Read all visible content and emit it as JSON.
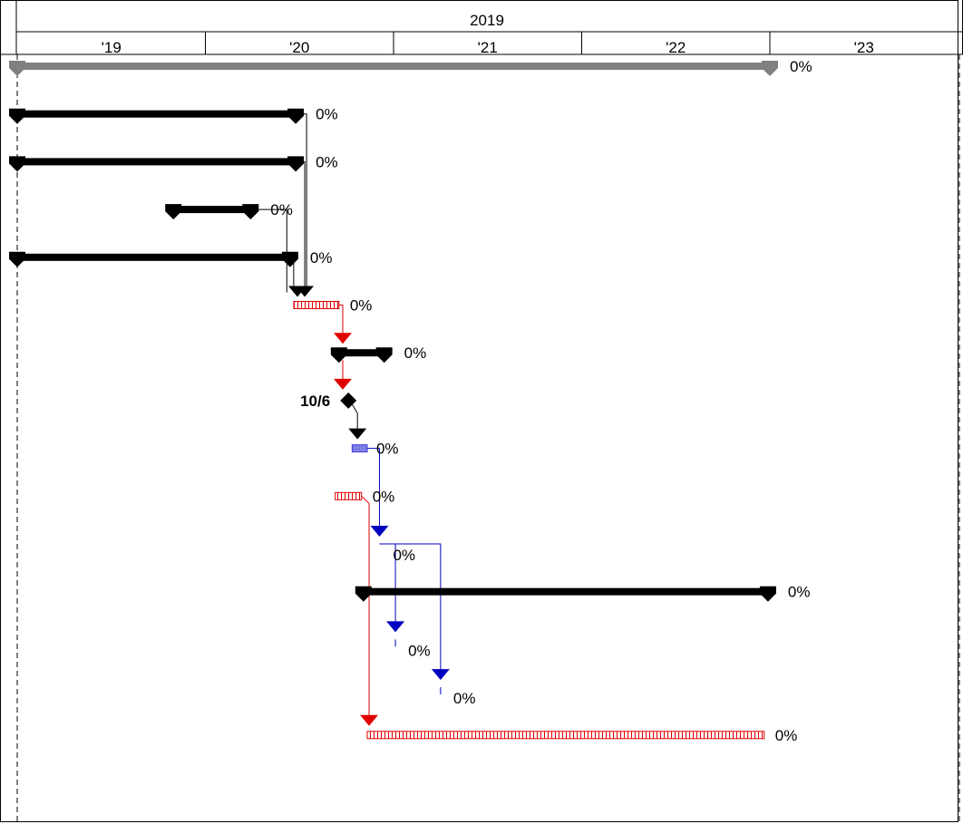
{
  "chart_data": {
    "type": "gantt",
    "timescale": {
      "top_label": "2019",
      "ticks": [
        "'19",
        "'20",
        "'21",
        "'22",
        "'23"
      ]
    },
    "colors": {
      "summary": "#000000",
      "project_summary": "#808080",
      "critical": "#e00000",
      "noncritical": "#4040e0",
      "link_black": "#000000",
      "link_red": "#e00000",
      "link_blue": "#0000c0"
    },
    "tasks": [
      {
        "id": 1,
        "kind": "project-summary",
        "start": 0.0,
        "finish": 4.0,
        "progress": "0%"
      },
      {
        "id": 2,
        "kind": "summary",
        "start": 0.0,
        "finish": 1.48,
        "progress": "0%"
      },
      {
        "id": 3,
        "kind": "summary",
        "start": 0.0,
        "finish": 1.48,
        "progress": "0%"
      },
      {
        "id": 4,
        "kind": "summary",
        "start": 0.83,
        "finish": 1.24,
        "progress": "0%"
      },
      {
        "id": 5,
        "kind": "summary",
        "start": 0.0,
        "finish": 1.45,
        "progress": "0%"
      },
      {
        "id": 6,
        "kind": "critical-task",
        "start": 1.47,
        "finish": 1.71,
        "progress": "0%"
      },
      {
        "id": 7,
        "kind": "summary",
        "start": 1.71,
        "finish": 1.95,
        "progress": "0%"
      },
      {
        "id": 8,
        "kind": "milestone",
        "start": 1.76,
        "finish": 1.76,
        "label": "10/6"
      },
      {
        "id": 9,
        "kind": "task",
        "start": 1.78,
        "finish": 1.86,
        "progress": "0%"
      },
      {
        "id": 10,
        "kind": "critical-task",
        "start": 1.69,
        "finish": 1.83,
        "progress": "0%"
      },
      {
        "id": 11,
        "kind": "summary-start",
        "start": 1.93,
        "finish": 1.93,
        "progress": "0%"
      },
      {
        "id": 12,
        "kind": "summary",
        "start": 1.84,
        "finish": 3.99,
        "progress": "0%"
      },
      {
        "id": 13,
        "kind": "summary-start",
        "start": 2.01,
        "finish": 2.01,
        "progress": "0%"
      },
      {
        "id": 14,
        "kind": "summary-start",
        "start": 2.25,
        "finish": 2.25,
        "progress": "0%"
      },
      {
        "id": 15,
        "kind": "critical-task",
        "start": 1.86,
        "finish": 3.97,
        "progress": "0%"
      }
    ]
  }
}
